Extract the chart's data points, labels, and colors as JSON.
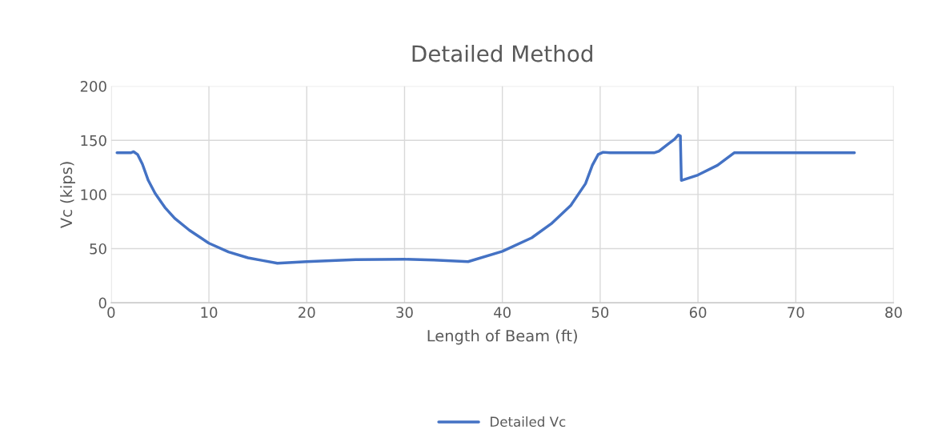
{
  "chart_data": {
    "type": "line",
    "title": "Detailed Method",
    "xlabel": "Length of Beam (ft)",
    "ylabel": "Vc (kips)",
    "xlim": [
      0,
      80
    ],
    "xticks": [
      0,
      10,
      20,
      30,
      40,
      50,
      60,
      70,
      80
    ],
    "ylim": [
      0,
      200
    ],
    "yticks": [
      0,
      50,
      100,
      150,
      200
    ],
    "grid": true,
    "legend": "bottom",
    "marker": "none",
    "line_style": "solid",
    "series": [
      {
        "name": "Detailed Vc",
        "color": "#4472c4",
        "x": [
          0.6,
          2,
          2.3,
          2.7,
          3.2,
          3.8,
          4.5,
          5.5,
          6.5,
          8,
          10,
          12,
          14,
          15.5,
          17,
          20,
          25,
          30,
          33,
          36.5,
          40,
          43,
          45,
          47,
          48.5,
          49.2,
          49.8,
          50.3,
          51,
          55.5,
          56,
          57,
          57.6,
          58,
          58.2,
          58.3,
          60,
          62,
          63.7,
          76
        ],
        "values": [
          138.5,
          138.5,
          139.5,
          137,
          128,
          113,
          101,
          88,
          78,
          67,
          55,
          47,
          41.5,
          39,
          36.5,
          38,
          39.8,
          40.2,
          39.5,
          38,
          47.5,
          60,
          73,
          90,
          110,
          127,
          137,
          139,
          138.5,
          138.5,
          140,
          147,
          151,
          155,
          154,
          113,
          118,
          127,
          138.5,
          138.5
        ]
      }
    ]
  }
}
